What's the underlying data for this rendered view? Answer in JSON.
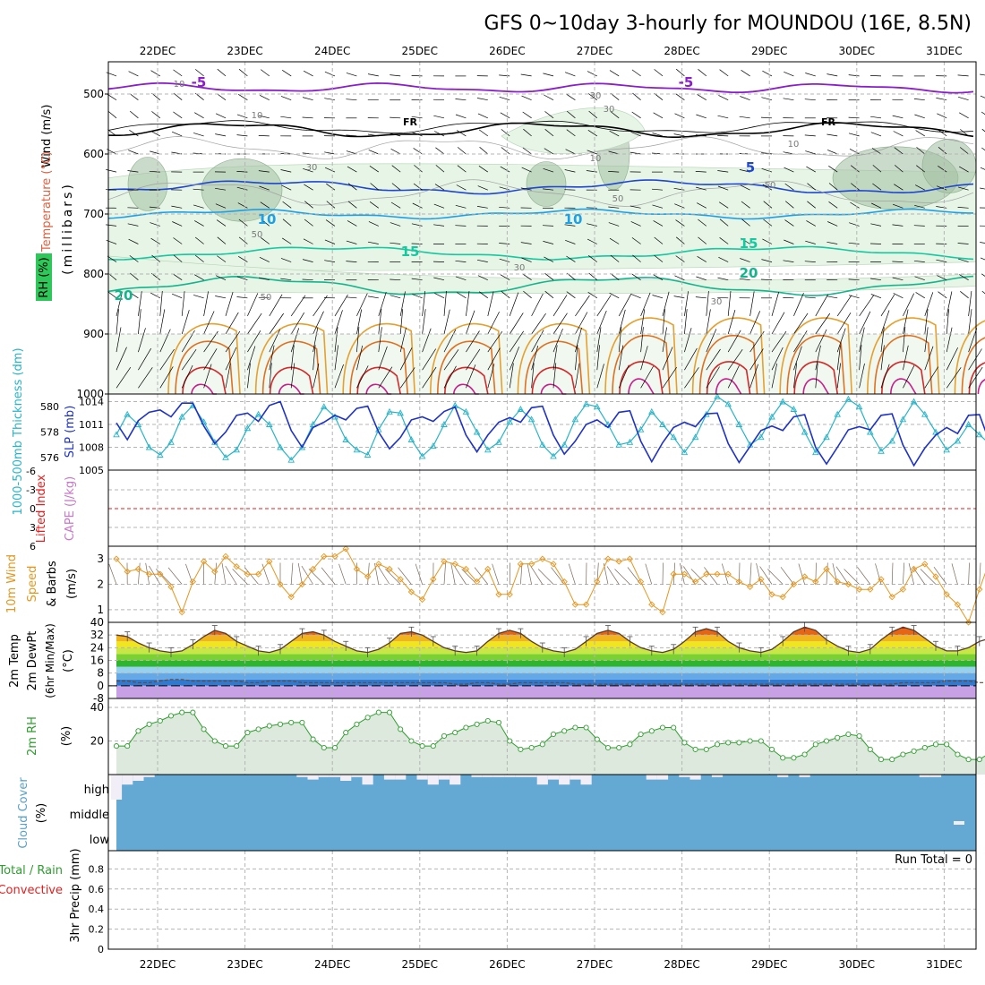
{
  "title": "GFS 0~10day 3-hourly for MOUNDOU (16E, 8.5N)",
  "dates": [
    "22DEC",
    "23DEC",
    "24DEC",
    "25DEC",
    "26DEC",
    "27DEC",
    "28DEC",
    "29DEC",
    "30DEC",
    "31DEC"
  ],
  "colors": {
    "grid": "#b4b4b4",
    "temp_purple": "#8a1ec8",
    "freezing": "#000000",
    "t5": "#1e46d2",
    "t10": "#1ea0e6",
    "t15": "#14c8a0",
    "t20": "#14b48c",
    "rh_fill": "#e6f5e6",
    "rh_dark": "#a0bea0",
    "cloud": "#64a8d4",
    "slp": "#1e32c8",
    "thick": "#28b4c8",
    "wind_speed": "#e6961e",
    "rh2m": "#2e9e2e",
    "cape_zero": "#e61e1e"
  },
  "panels": {
    "upper": {
      "ylabel_wind": "Wind (m/s)",
      "ylabel_temp": "Temperature (°C)",
      "ylabel_rh": "RH (%)",
      "ylabel_pressure": "(millibars)",
      "pressure_ticks": [
        "500",
        "600",
        "700",
        "800",
        "900",
        "1000"
      ],
      "isotherm_labels": [
        "-5",
        "-5",
        "FR",
        "FR",
        "5",
        "10",
        "10",
        "15",
        "15",
        "20",
        "20"
      ],
      "rh_labels": [
        "10",
        "10",
        "30",
        "30",
        "50",
        "50",
        "50",
        "10",
        "10",
        "30",
        "50",
        "30",
        "30"
      ]
    },
    "slp": {
      "ylabel_thick": "1000-500mb Thickness (dm)",
      "ylabel_slp": "SLP (mb)",
      "thick_ticks": [
        "580",
        "578",
        "576"
      ],
      "slp_ticks": [
        "1014",
        "1011",
        "1008",
        "1005"
      ]
    },
    "cape": {
      "ylabel_li": "Lifted Index",
      "ylabel_cape": "CAPE (J/kg)",
      "ticks": [
        "-6",
        "-3",
        "0",
        "3",
        "6"
      ]
    },
    "wind10": {
      "ylabel": "10m Wind Speed & Barbs (m/s)",
      "ylabel_lines": [
        "10m Wind",
        "Speed",
        "& Barbs",
        "(m/s)"
      ],
      "ticks": [
        "3",
        "2",
        "1"
      ]
    },
    "temp2m": {
      "ylabel_lines": [
        "2m Temp",
        "2m DewPt",
        "(6hr Min/Max)",
        "(°C)"
      ],
      "ticks": [
        "40",
        "32",
        "24",
        "16",
        "8",
        "0",
        "-8"
      ]
    },
    "rh2m": {
      "ylabel": "2m RH",
      "unit": "(%)",
      "ticks": [
        "40",
        "20"
      ]
    },
    "cloud": {
      "ylabel": "Cloud Cover",
      "unit": "(%)",
      "levels": [
        "high",
        "middle",
        "low"
      ]
    },
    "precip": {
      "ylabel_lines": [
        "Total / Rain",
        "Convective"
      ],
      "ylabel_axis": "3hr Precip (mm)",
      "ticks": [
        "0.8",
        "0.6",
        "0.4",
        "0.2",
        "0"
      ],
      "run_total": "Run Total = 0"
    }
  },
  "chart_data": [
    {
      "type": "line",
      "title": "SLP and 1000-500mb Thickness",
      "xlabel": "",
      "x_times_hours": [
        0,
        3,
        6,
        9,
        12,
        15,
        18,
        21,
        24,
        27,
        30,
        33,
        36,
        39,
        42,
        45,
        48,
        51,
        54,
        57,
        60,
        63,
        66,
        69,
        72,
        75,
        78,
        81,
        84,
        87,
        90,
        93,
        96,
        99,
        102,
        105,
        108,
        111,
        114,
        117,
        120,
        123,
        126,
        129,
        132,
        135,
        138,
        141,
        144,
        147,
        150,
        153,
        156,
        159,
        162,
        165,
        168,
        171,
        174,
        177,
        180,
        183,
        186,
        189,
        192,
        195,
        198,
        201,
        204,
        207,
        210,
        213,
        216,
        219,
        222,
        225,
        228,
        231,
        234,
        237,
        240
      ],
      "series": [
        {
          "name": "SLP (mb)",
          "axis": "right",
          "ylim": [
            1005,
            1015
          ],
          "values": [
            1011.2,
            1009.0,
            1011.5,
            1012.6,
            1012.9,
            1012.0,
            1013.8,
            1013.8,
            1010.8,
            1008.5,
            1010.0,
            1012.2,
            1012.5,
            1011.4,
            1013.5,
            1014.0,
            1010.2,
            1008.0,
            1010.6,
            1011.3,
            1012.2,
            1011.6,
            1013.1,
            1013.4,
            1010.0,
            1007.8,
            1009.3,
            1011.6,
            1012.0,
            1011.4,
            1012.7,
            1013.3,
            1009.6,
            1007.4,
            1009.6,
            1011.3,
            1011.9,
            1011.3,
            1013.2,
            1013.4,
            1009.6,
            1007.1,
            1008.8,
            1011.0,
            1011.6,
            1010.6,
            1012.6,
            1012.8,
            1008.8,
            1006.1,
            1008.6,
            1010.6,
            1011.3,
            1010.7,
            1012.4,
            1012.5,
            1008.5,
            1006.0,
            1008.1,
            1010.2,
            1010.8,
            1010.2,
            1012.0,
            1012.3,
            1008.0,
            1005.8,
            1008.0,
            1010.3,
            1010.7,
            1010.3,
            1012.2,
            1012.4,
            1008.3,
            1005.6,
            1007.9,
            1009.6,
            1010.6,
            1009.8,
            1012.2,
            1012.3,
            1008.4
          ]
        },
        {
          "name": "Thickness (dm)",
          "axis": "left",
          "ylim": [
            575,
            581
          ],
          "values": [
            577.8,
            579.4,
            578.6,
            576.8,
            576.2,
            577.2,
            579.2,
            580.1,
            578.8,
            577.2,
            576.0,
            576.6,
            578.3,
            579.4,
            578.6,
            576.8,
            575.8,
            576.8,
            578.6,
            580.0,
            579.2,
            577.4,
            576.6,
            576.2,
            578.2,
            579.6,
            579.5,
            577.4,
            576.1,
            576.9,
            578.6,
            580.1,
            579.6,
            578.0,
            576.6,
            577.2,
            578.8,
            579.8,
            579.0,
            577.0,
            576.1,
            577.0,
            579.0,
            580.2,
            580.0,
            578.6,
            577.0,
            577.2,
            578.2,
            579.6,
            578.6,
            577.6,
            576.4,
            577.6,
            579.4,
            580.8,
            580.2,
            578.6,
            577.0,
            577.6,
            579.2,
            580.4,
            579.8,
            578.0,
            576.4,
            577.6,
            579.4,
            580.6,
            580.0,
            578.0,
            576.5,
            577.3,
            579.0,
            580.4,
            579.4,
            578.0,
            576.6,
            577.3,
            578.6,
            577.8,
            577.0
          ]
        }
      ]
    },
    {
      "type": "line",
      "title": "Lifted Index / CAPE",
      "series": [
        {
          "name": "Lifted Index",
          "values": []
        }
      ],
      "ylim": [
        6,
        -6
      ]
    },
    {
      "type": "line",
      "title": "10m Wind Speed",
      "ylim": [
        0.5,
        3.5
      ],
      "series": [
        {
          "name": "Speed (m/s)",
          "values": [
            3.0,
            2.5,
            2.6,
            2.4,
            2.4,
            1.9,
            0.9,
            2.1,
            2.9,
            2.5,
            3.1,
            2.7,
            2.4,
            2.4,
            2.9,
            2.0,
            1.5,
            2.0,
            2.6,
            3.1,
            3.1,
            3.4,
            2.6,
            2.3,
            2.8,
            2.6,
            2.2,
            1.7,
            1.4,
            2.2,
            2.9,
            2.8,
            2.6,
            2.1,
            2.6,
            1.6,
            1.6,
            2.8,
            2.8,
            3.0,
            2.8,
            2.1,
            1.2,
            1.2,
            2.1,
            3.0,
            2.9,
            3.0,
            2.1,
            1.2,
            0.9,
            2.4,
            2.4,
            2.1,
            2.4,
            2.4,
            2.4,
            2.1,
            1.9,
            2.2,
            1.6,
            1.5,
            2.0,
            2.3,
            2.1,
            2.6,
            2.1,
            2.0,
            1.8,
            1.8,
            2.2,
            1.5,
            1.8,
            2.6,
            2.8,
            2.3,
            1.6,
            1.2,
            0.5,
            1.8,
            3.0
          ]
        }
      ]
    },
    {
      "type": "area",
      "title": "2m Temperature and Dew Point",
      "ylim": [
        -8,
        40
      ],
      "series": [
        {
          "name": "2m Temp (°C)",
          "values": [
            32,
            31,
            27,
            24,
            22,
            21,
            22,
            26,
            31,
            35,
            33,
            28,
            25,
            22,
            21,
            23,
            28,
            33,
            34,
            32,
            28,
            25,
            22,
            21,
            23,
            27,
            33,
            34,
            32,
            28,
            24,
            22,
            21,
            22,
            28,
            33,
            35,
            33,
            28,
            24,
            22,
            21,
            23,
            28,
            33,
            35,
            33,
            28,
            24,
            22,
            21,
            23,
            28,
            34,
            36,
            34,
            28,
            24,
            22,
            21,
            23,
            28,
            34,
            37,
            35,
            29,
            25,
            22,
            21,
            23,
            29,
            34,
            37,
            35,
            30,
            25,
            22,
            22,
            24,
            28,
            30
          ]
        },
        {
          "name": "2m DewPt (°C)",
          "values": [
            3,
            3,
            2,
            2,
            3,
            4,
            4,
            3,
            3,
            3,
            3,
            3,
            2,
            2,
            3,
            3,
            3,
            2,
            2,
            2,
            2,
            2,
            2,
            2,
            2,
            2,
            2,
            2,
            2,
            2,
            2,
            1,
            1,
            2,
            2,
            1,
            1,
            2,
            2,
            2,
            2,
            2,
            1,
            1,
            1,
            1,
            1,
            1,
            1,
            1,
            1,
            1,
            1,
            1,
            1,
            1,
            1,
            1,
            1,
            1,
            1,
            1,
            1,
            1,
            1,
            1,
            1,
            1,
            1,
            1,
            1,
            1,
            2,
            2,
            2,
            2,
            3,
            3,
            3,
            2,
            2
          ]
        }
      ]
    },
    {
      "type": "area",
      "title": "2m RH",
      "ylim": [
        0,
        40
      ],
      "series": [
        {
          "name": "2m RH (%)",
          "values": [
            17,
            17,
            26,
            30,
            32,
            35,
            37,
            37,
            27,
            20,
            17,
            17,
            25,
            27,
            29,
            30,
            31,
            31,
            21,
            16,
            16,
            25,
            30,
            34,
            37,
            37,
            27,
            20,
            17,
            17,
            23,
            25,
            28,
            30,
            32,
            31,
            20,
            15,
            16,
            18,
            24,
            26,
            28,
            28,
            21,
            16,
            16,
            18,
            24,
            26,
            28,
            28,
            19,
            15,
            15,
            18,
            19,
            19,
            20,
            20,
            15,
            10,
            10,
            12,
            18,
            20,
            22,
            24,
            23,
            15,
            9,
            9,
            12,
            14,
            16,
            18,
            18,
            12,
            9,
            9,
            13
          ]
        }
      ]
    },
    {
      "type": "bar",
      "title": "Cloud Cover (high)",
      "ylim": [
        0,
        100
      ],
      "series": [
        {
          "name": "High cloud (%)",
          "values": [
            100,
            40,
            25,
            10,
            0,
            0,
            0,
            0,
            0,
            0,
            0,
            0,
            0,
            0,
            0,
            0,
            0,
            10,
            20,
            10,
            10,
            25,
            10,
            40,
            0,
            20,
            20,
            0,
            20,
            40,
            20,
            40,
            0,
            10,
            10,
            10,
            10,
            10,
            10,
            40,
            20,
            40,
            20,
            40,
            0,
            0,
            0,
            0,
            0,
            20,
            20,
            0,
            10,
            20,
            0,
            10,
            0,
            0,
            0,
            0,
            0,
            10,
            0,
            10,
            0,
            0,
            0,
            0,
            0,
            0,
            0,
            0,
            0,
            0,
            10,
            10,
            0,
            0,
            0,
            0,
            0
          ]
        }
      ]
    },
    {
      "type": "bar",
      "title": "3hr Precip",
      "ylim": [
        0,
        1
      ],
      "series": [
        {
          "name": "Total / Rain (mm)",
          "values": []
        }
      ]
    }
  ]
}
